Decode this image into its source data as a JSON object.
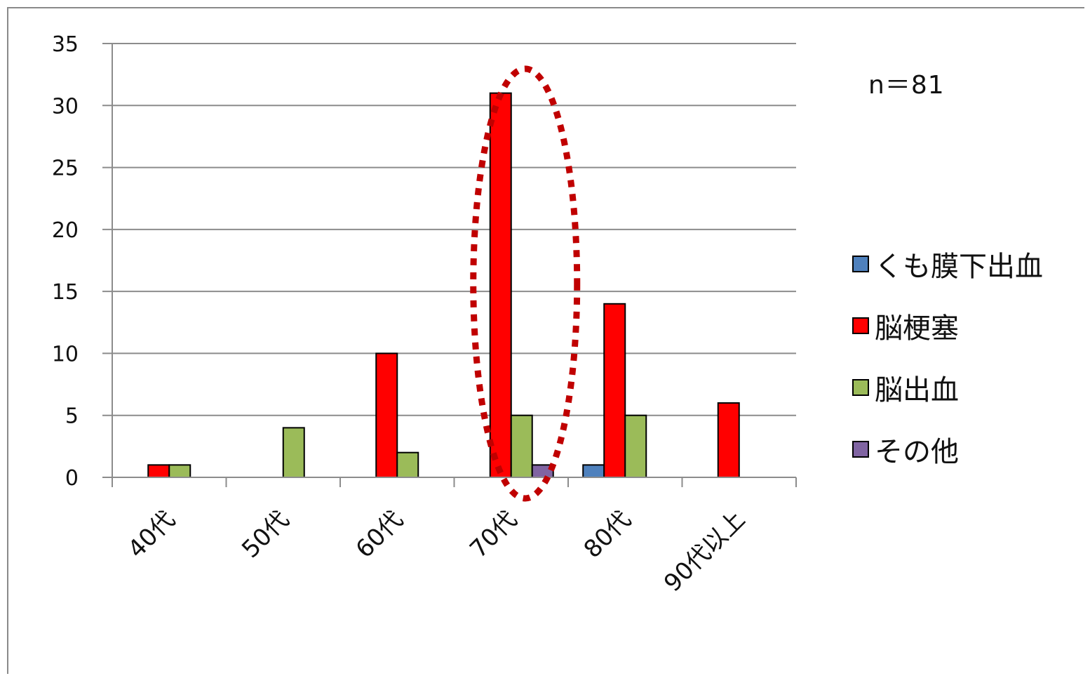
{
  "chart_data": {
    "type": "bar",
    "categories": [
      "40代",
      "50代",
      "60代",
      "70代",
      "80代",
      "90代以上"
    ],
    "series": [
      {
        "name": "くも膜下出血",
        "color": "#4f81bd",
        "values": [
          0,
          0,
          0,
          0,
          1,
          0
        ]
      },
      {
        "name": "脳梗塞",
        "color": "#ff0000",
        "values": [
          1,
          0,
          10,
          31,
          14,
          6
        ]
      },
      {
        "name": "脳出血",
        "color": "#9bbb59",
        "values": [
          1,
          4,
          2,
          5,
          5,
          0
        ]
      },
      {
        "name": "その他",
        "color": "#8064a2",
        "values": [
          0,
          0,
          0,
          1,
          0,
          0
        ]
      }
    ],
    "ylim": [
      0,
      35
    ],
    "yticks": [
      0,
      5,
      10,
      15,
      20,
      25,
      30,
      35
    ],
    "grid": true,
    "legend_position": "right",
    "annotation": "n＝81",
    "highlight": {
      "category": "70代",
      "shape": "dotted-ellipse",
      "color": "#c00000"
    }
  }
}
